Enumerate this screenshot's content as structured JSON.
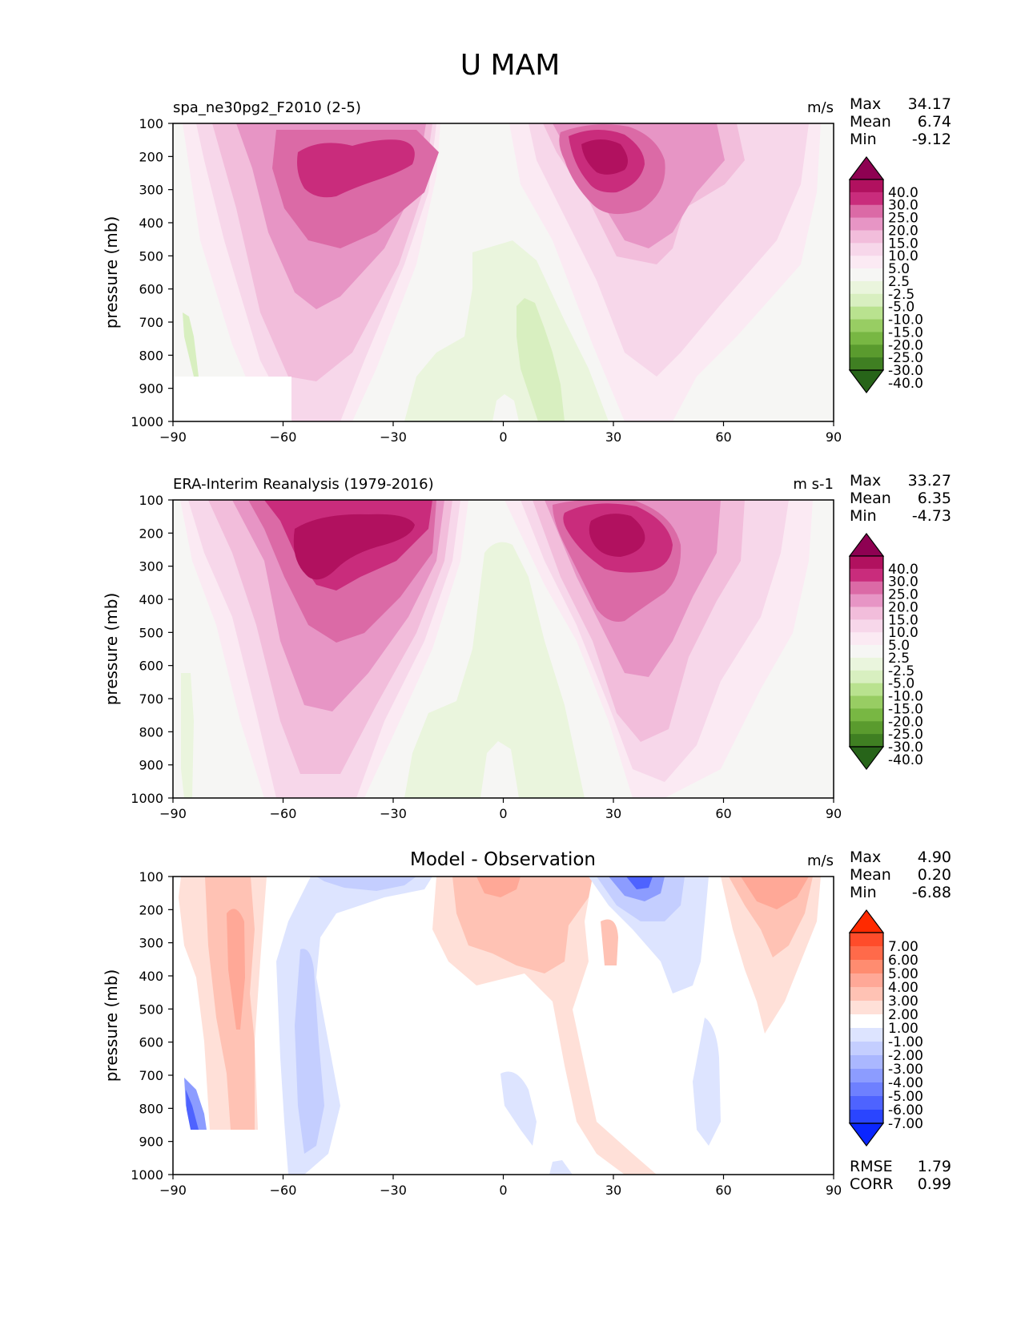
{
  "figure_title": "U MAM",
  "stat_labels": {
    "max": "Max",
    "mean": "Mean",
    "min": "Min",
    "rmse": "RMSE",
    "corr": "CORR"
  },
  "colors": {
    "wind_levels": [
      "#8e0152",
      "#b1115f",
      "#c92c7c",
      "#db6aa6",
      "#e795c5",
      "#f2bddb",
      "#f7d7ea",
      "#fbeaf3",
      "#f6f6f4",
      "#eaf5dd",
      "#d8efc0",
      "#b9e28f",
      "#98cd63",
      "#78b743",
      "#5a9b2e",
      "#3f7f22",
      "#276419"
    ],
    "diff_levels": [
      "#ff2a00",
      "#ff4c2a",
      "#ff6a4a",
      "#ff8c70",
      "#ffa897",
      "#ffc2b4",
      "#ffe0d8",
      "#ffffff",
      "#dde4ff",
      "#c4ceff",
      "#aab7ff",
      "#8c9cff",
      "#6e80ff",
      "#4e63ff",
      "#2a45ff",
      "#0a26ff"
    ]
  },
  "chart_data": [
    {
      "type": "contour",
      "panel": "test",
      "title_left": "spa_ne30pg2_F2010 (2-5)",
      "units": "m/s",
      "xlabel": "",
      "ylabel": "pressure (mb)",
      "xlim": [
        -90,
        90
      ],
      "ylim": [
        1000,
        100
      ],
      "xticks": [
        "−90",
        "−60",
        "−30",
        "0",
        "30",
        "60",
        "90"
      ],
      "yticks": [
        "100",
        "200",
        "300",
        "400",
        "500",
        "600",
        "700",
        "800",
        "900",
        "1000"
      ],
      "stats": {
        "max": "34.17",
        "mean": "6.74",
        "min": "-9.12"
      },
      "colorbar_labels": [
        "40.0",
        "30.0",
        "25.0",
        "20.0",
        "15.0",
        "10.0",
        "5.0",
        "2.5",
        "-2.5",
        "-5.0",
        "-10.0",
        "-15.0",
        "-20.0",
        "-25.0",
        "-30.0",
        "-40.0"
      ],
      "jets": [
        {
          "lat": -48,
          "p": 220,
          "speed": 28
        },
        {
          "lat": 28,
          "p": 200,
          "speed": 34
        }
      ],
      "tropical_easterly": {
        "lat": 5,
        "p": 650,
        "speed": -9
      }
    },
    {
      "type": "contour",
      "panel": "reference",
      "title_left": "ERA-Interim Reanalysis (1979-2016)",
      "units": "m s-1",
      "xlabel": "",
      "ylabel": "pressure (mb)",
      "xlim": [
        -90,
        90
      ],
      "ylim": [
        1000,
        100
      ],
      "xticks": [
        "−90",
        "−60",
        "−30",
        "0",
        "30",
        "60",
        "90"
      ],
      "yticks": [
        "100",
        "200",
        "300",
        "400",
        "500",
        "600",
        "700",
        "800",
        "900",
        "1000"
      ],
      "stats": {
        "max": "33.27",
        "mean": "6.35",
        "min": "-4.73"
      },
      "colorbar_labels": [
        "40.0",
        "30.0",
        "25.0",
        "20.0",
        "15.0",
        "10.0",
        "5.0",
        "2.5",
        "-2.5",
        "-5.0",
        "-10.0",
        "-15.0",
        "-20.0",
        "-25.0",
        "-30.0",
        "-40.0"
      ],
      "jets": [
        {
          "lat": -48,
          "p": 230,
          "speed": 30
        },
        {
          "lat": 30,
          "p": 200,
          "speed": 33
        }
      ],
      "tropical_easterly": {
        "lat": 5,
        "p": 650,
        "speed": -4.7
      }
    },
    {
      "type": "contour",
      "panel": "difference",
      "title_center": "Model - Observation",
      "units": "m/s",
      "xlabel": "",
      "ylabel": "pressure (mb)",
      "xlim": [
        -90,
        90
      ],
      "ylim": [
        1000,
        100
      ],
      "xticks": [
        "−90",
        "−60",
        "−30",
        "0",
        "30",
        "60",
        "90"
      ],
      "yticks": [
        "100",
        "200",
        "300",
        "400",
        "500",
        "600",
        "700",
        "800",
        "900",
        "1000"
      ],
      "stats": {
        "max": "4.90",
        "mean": "0.20",
        "min": "-6.88"
      },
      "metrics": {
        "rmse": "1.79",
        "corr": "0.99"
      },
      "colorbar_labels": [
        "7.00",
        "6.00",
        "5.00",
        "4.00",
        "3.00",
        "2.00",
        "1.00",
        "-1.00",
        "-2.00",
        "-3.00",
        "-4.00",
        "-5.00",
        "-6.00",
        "-7.00"
      ]
    }
  ]
}
